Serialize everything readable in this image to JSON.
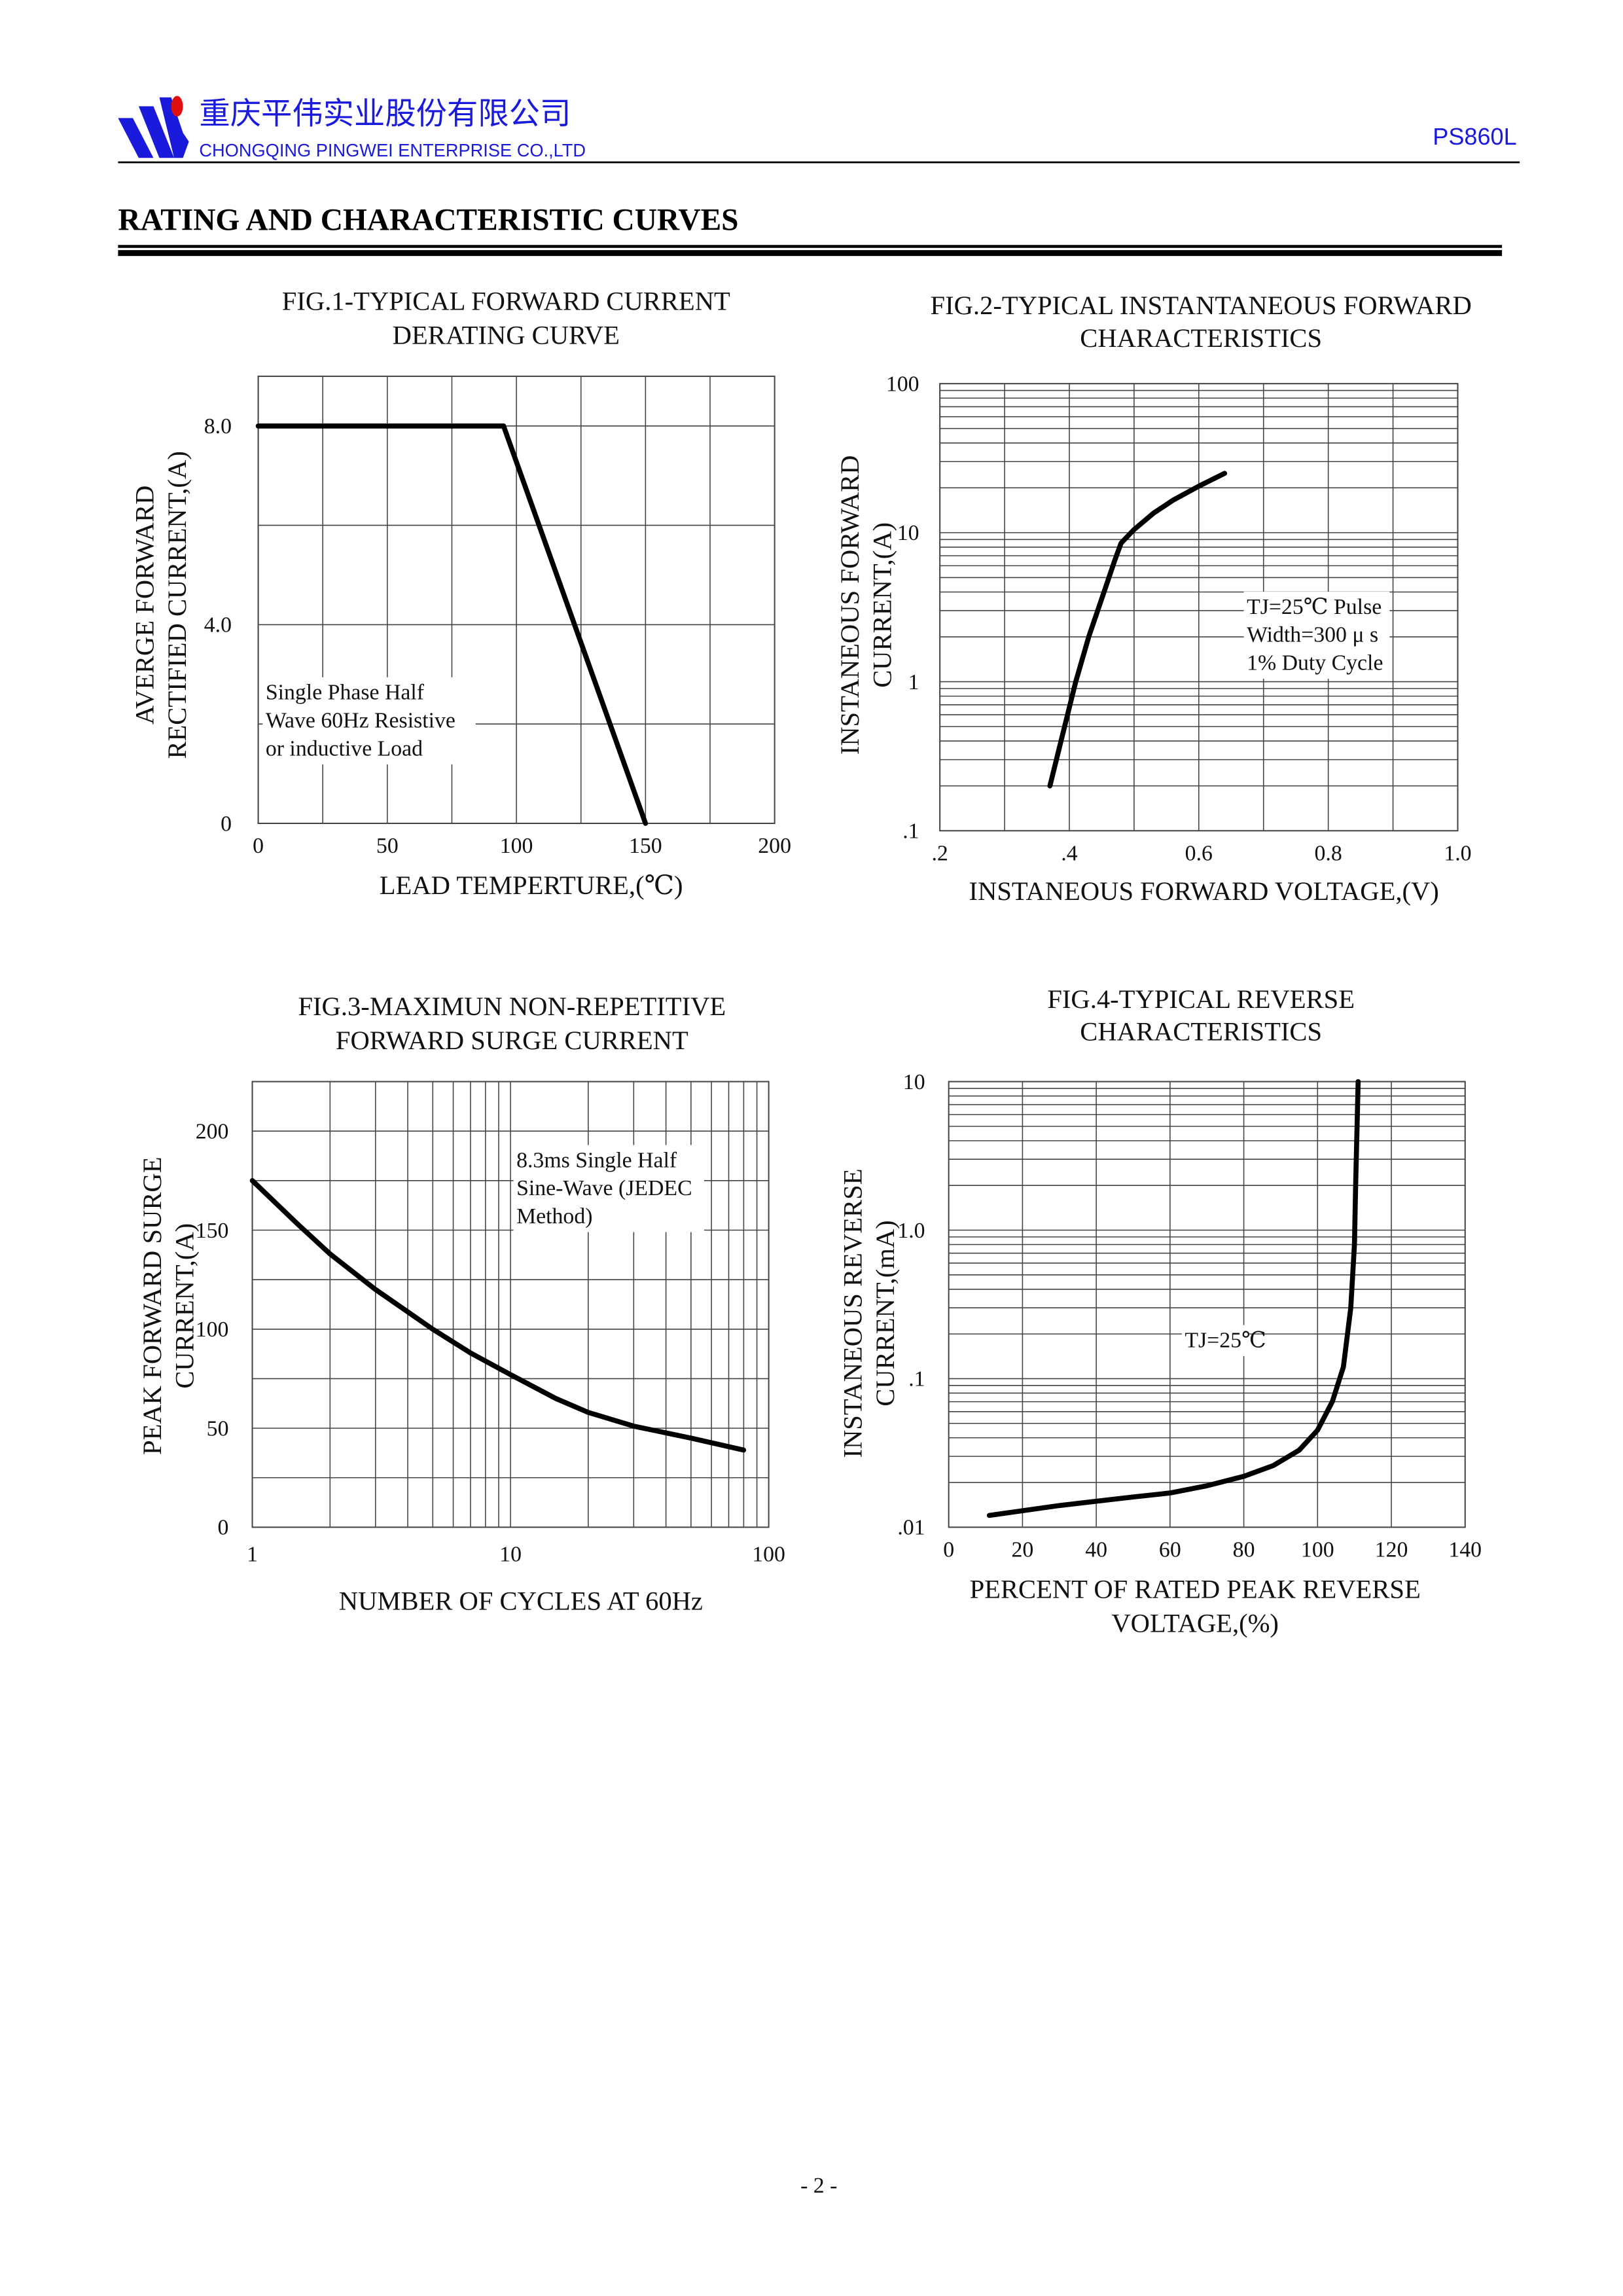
{
  "header": {
    "company_cn": "重庆平伟实业股份有限公司",
    "company_en": "CHONGQING PINGWEI ENTERPRISE CO.,LTD",
    "part_number": "PS860L",
    "brand_color": "#1a1adc",
    "logo_accent": "#e01010"
  },
  "section_title": "RATING AND CHARACTERISTIC CURVES",
  "footer": {
    "page": "- 2 -"
  },
  "chart_data": [
    {
      "type": "line",
      "title": [
        "FIG.1-TYPICAL FORWARD CURRENT",
        "DERATING CURVE"
      ],
      "xlabel": "LEAD  TEMPERTURE,(℃)",
      "ylabel": [
        "AVERGE FORWARD",
        "RECTIFIED CURRENT,(A)"
      ],
      "xscale": "linear",
      "yscale": "linear",
      "xlim": [
        0,
        200
      ],
      "ylim": [
        0,
        9
      ],
      "xgrid": [
        25,
        50,
        75,
        100,
        125,
        150,
        175
      ],
      "ygrid": [
        2,
        4,
        6,
        8
      ],
      "xticks": [
        {
          "v": 0,
          "label": "0"
        },
        {
          "v": 50,
          "label": "50"
        },
        {
          "v": 100,
          "label": "100"
        },
        {
          "v": 150,
          "label": "150"
        },
        {
          "v": 200,
          "label": "200"
        }
      ],
      "yticks": [
        {
          "v": 0,
          "label": "0"
        },
        {
          "v": 4,
          "label": "4.0"
        },
        {
          "v": 8,
          "label": "8.0"
        }
      ],
      "series": [
        {
          "name": "derating",
          "x": [
            0,
            95,
            150
          ],
          "y": [
            8,
            8,
            0
          ]
        }
      ],
      "annotation": [
        "Single Phase Half",
        "Wave 60Hz Resistive",
        "or inductive Load"
      ],
      "grid": true
    },
    {
      "type": "line",
      "title": [
        "FIG.2-TYPICAL INSTANTANEOUS FORWARD",
        "CHARACTERISTICS"
      ],
      "xlabel": "INSTANEOUS FORWARD VOLTAGE,(V)",
      "ylabel": [
        "INSTANEOUS FORWARD",
        "CURRENT,(A)"
      ],
      "xscale": "linear",
      "yscale": "log",
      "xlim": [
        0.2,
        1.0
      ],
      "ylim": [
        0.1,
        100
      ],
      "xgrid": [
        0.3,
        0.4,
        0.5,
        0.6,
        0.7,
        0.8,
        0.9
      ],
      "xticks": [
        {
          "v": 0.2,
          "label": ".2"
        },
        {
          "v": 0.4,
          "label": ".4"
        },
        {
          "v": 0.6,
          "label": "0.6"
        },
        {
          "v": 0.8,
          "label": "0.8"
        },
        {
          "v": 1.0,
          "label": "1.0"
        }
      ],
      "yticks": [
        {
          "v": 0.1,
          "label": ".1"
        },
        {
          "v": 1,
          "label": "1"
        },
        {
          "v": 10,
          "label": "10"
        },
        {
          "v": 100,
          "label": "100"
        }
      ],
      "series": [
        {
          "name": "forward",
          "x": [
            0.37,
            0.39,
            0.41,
            0.43,
            0.45,
            0.47,
            0.48,
            0.5,
            0.53,
            0.56,
            0.6,
            0.64
          ],
          "y": [
            0.2,
            0.45,
            1.0,
            2.0,
            3.6,
            6.5,
            8.5,
            10.5,
            13.5,
            16.5,
            20.5,
            25
          ]
        }
      ],
      "annotation": [
        "TJ=25℃ Pulse",
        "Width=300 μ s",
        "1% Duty Cycle"
      ],
      "grid": true
    },
    {
      "type": "line",
      "title": [
        "FIG.3-MAXIMUN NON-REPETITIVE",
        "FORWARD SURGE CURRENT"
      ],
      "xlabel": "NUMBER OF CYCLES AT 60Hz",
      "ylabel": [
        "PEAK FORWARD SURGE",
        "CURRENT,(A)"
      ],
      "xscale": "log",
      "yscale": "linear",
      "xlim": [
        1,
        100
      ],
      "ylim": [
        0,
        225
      ],
      "ygrid": [
        25,
        50,
        75,
        100,
        125,
        150,
        175,
        200
      ],
      "xticks": [
        {
          "v": 1,
          "label": "1"
        },
        {
          "v": 10,
          "label": "10"
        },
        {
          "v": 100,
          "label": "100"
        }
      ],
      "yticks": [
        {
          "v": 0,
          "label": "0"
        },
        {
          "v": 50,
          "label": "50"
        },
        {
          "v": 100,
          "label": "100"
        },
        {
          "v": 150,
          "label": "150"
        },
        {
          "v": 200,
          "label": "200"
        }
      ],
      "series": [
        {
          "name": "surge",
          "x": [
            1,
            1.5,
            2,
            3,
            5,
            7,
            10,
            15,
            20,
            30,
            50,
            80
          ],
          "y": [
            175,
            153,
            138,
            120,
            100,
            88,
            77,
            65,
            58,
            51,
            45,
            39
          ]
        }
      ],
      "annotation": [
        "8.3ms Single Half",
        "Sine-Wave (JEDEC",
        "Method)"
      ],
      "grid": true
    },
    {
      "type": "line",
      "title": [
        "FIG.4-TYPICAL REVERSE",
        "CHARACTERISTICS"
      ],
      "xlabel": [
        "PERCENT OF RATED PEAK REVERSE",
        "VOLTAGE,(%)"
      ],
      "ylabel": [
        "INSTANEOUS REVERSE",
        "CURRENT,(mA)"
      ],
      "xscale": "linear",
      "yscale": "log",
      "xlim": [
        0,
        140
      ],
      "ylim": [
        0.01,
        10
      ],
      "xgrid": [
        20,
        40,
        60,
        80,
        100,
        120
      ],
      "xticks": [
        {
          "v": 0,
          "label": "0"
        },
        {
          "v": 20,
          "label": "20"
        },
        {
          "v": 40,
          "label": "40"
        },
        {
          "v": 60,
          "label": "60"
        },
        {
          "v": 80,
          "label": "80"
        },
        {
          "v": 100,
          "label": "100"
        },
        {
          "v": 120,
          "label": "120"
        },
        {
          "v": 140,
          "label": "140"
        }
      ],
      "yticks": [
        {
          "v": 0.01,
          "label": ".01"
        },
        {
          "v": 0.1,
          "label": ".1"
        },
        {
          "v": 1,
          "label": "1.0"
        },
        {
          "v": 10,
          "label": "10"
        }
      ],
      "series": [
        {
          "name": "reverse",
          "x": [
            11,
            30,
            50,
            60,
            70,
            80,
            88,
            95,
            100,
            104,
            107,
            109,
            110,
            110.3,
            111
          ],
          "y": [
            0.012,
            0.014,
            0.016,
            0.017,
            0.019,
            0.022,
            0.026,
            0.033,
            0.045,
            0.07,
            0.12,
            0.3,
            0.8,
            2,
            10
          ]
        }
      ],
      "annotation": [
        "TJ=25℃"
      ],
      "grid": true
    }
  ]
}
